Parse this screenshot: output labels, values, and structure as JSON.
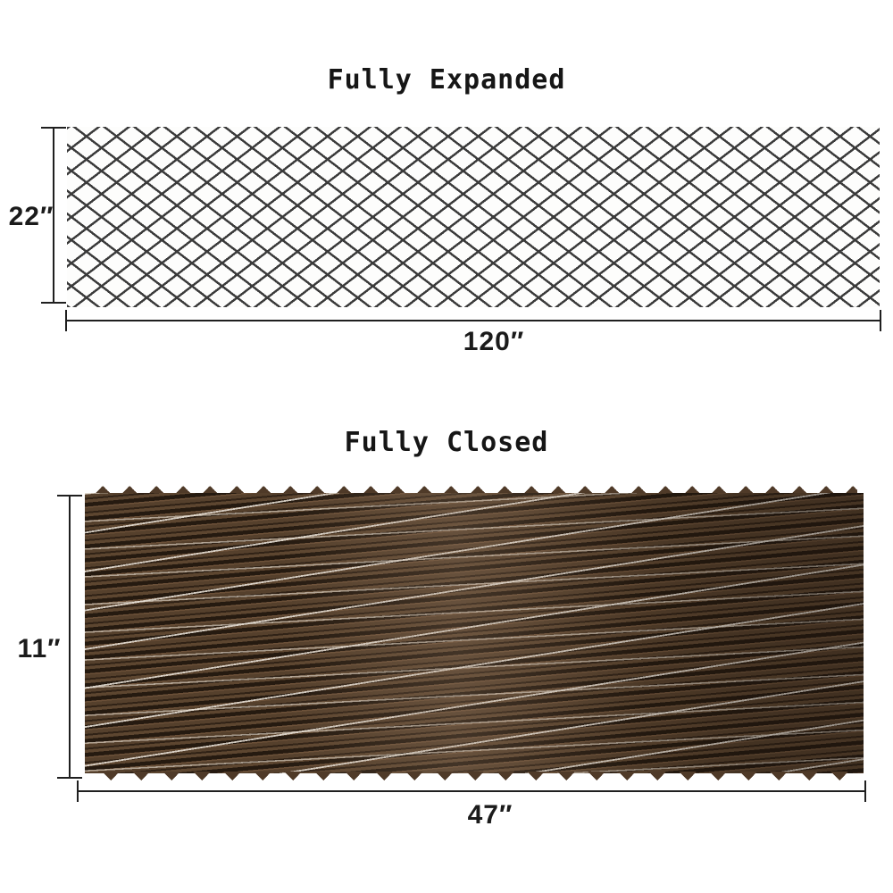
{
  "expanded": {
    "title": "Fully Expanded",
    "height_label": "22″",
    "width_label": "120″",
    "height_inches": 22,
    "width_inches": 120
  },
  "closed": {
    "title": "Fully Closed",
    "height_label": "11″",
    "width_label": "47″",
    "height_inches": 11,
    "width_inches": 47
  },
  "colors": {
    "background": "#ffffff",
    "lattice_line": "#3b3b3b",
    "dimension_line": "#1f1f1f",
    "stick_brown_mid": "#55402c",
    "stick_brown_light": "#6b5038",
    "stick_brown_dark": "#251a10",
    "gap_light": "#ece5db"
  }
}
